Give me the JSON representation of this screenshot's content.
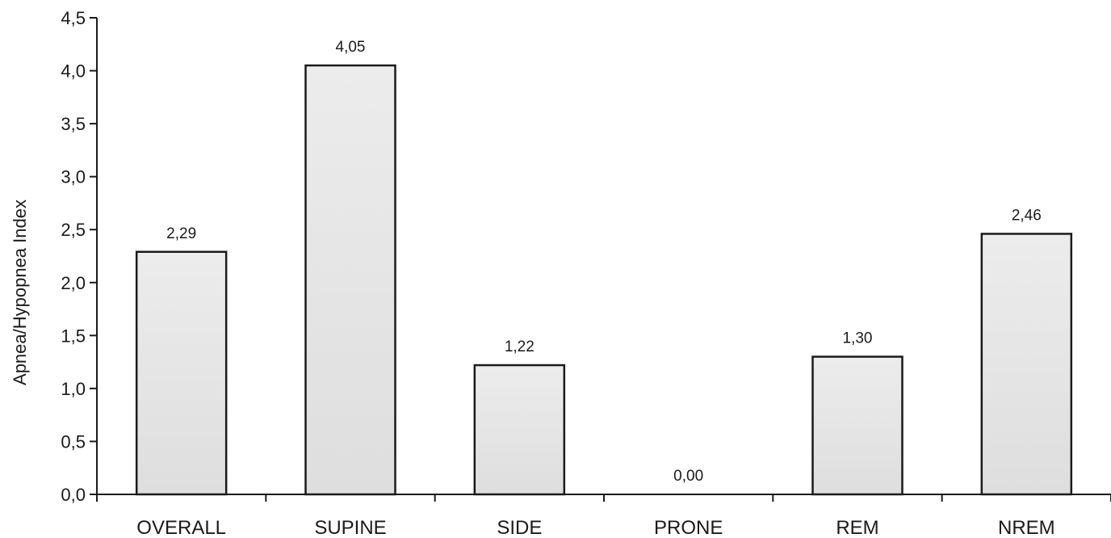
{
  "chart_data": {
    "type": "bar",
    "title": "",
    "xlabel": "",
    "ylabel": "Apnea/Hypopnea Index",
    "ylim": [
      0,
      4.5
    ],
    "yticks": [
      "0,0",
      "0,5",
      "1,0",
      "1,5",
      "2,0",
      "2,5",
      "3,0",
      "3,5",
      "4,0",
      "4,5"
    ],
    "ytick_values": [
      0,
      0.5,
      1.0,
      1.5,
      2.0,
      2.5,
      3.0,
      3.5,
      4.0,
      4.5
    ],
    "categories": [
      "OVERALL",
      "SUPINE",
      "SIDE",
      "PRONE",
      "REM",
      "NREM"
    ],
    "values": [
      2.29,
      4.05,
      1.22,
      0.0,
      1.3,
      2.46
    ],
    "value_labels": [
      "2,29",
      "4,05",
      "1,22",
      "0,00",
      "1,30",
      "2,46"
    ],
    "grid": false,
    "legend": "none",
    "colors": {
      "bar_fill": "#e6e6e6",
      "bar_stroke": "#1a1a1a",
      "axis": "#1a1a1a"
    }
  }
}
